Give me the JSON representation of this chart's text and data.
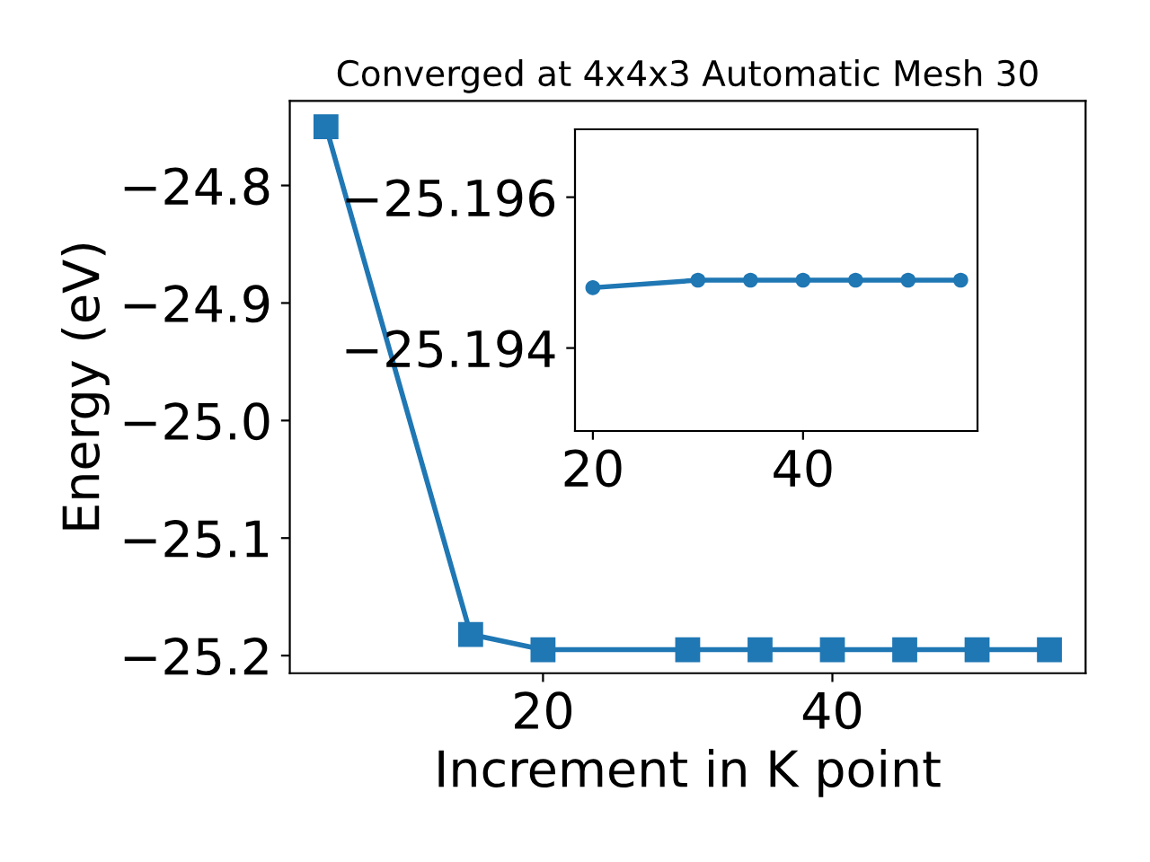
{
  "chart_data": [
    {
      "type": "line",
      "title": "Converged at 4x4x3 Automatic Mesh 30",
      "xlabel": "Increment in K point",
      "ylabel": "Energy (eV)",
      "x": [
        5,
        15,
        20,
        30,
        35,
        40,
        45,
        50,
        55
      ],
      "series": [
        {
          "color": "#1f77b4",
          "values": [
            -24.75,
            -25.182,
            -25.195,
            -25.195,
            -25.195,
            -25.195,
            -25.195,
            -25.195,
            -25.195
          ]
        }
      ],
      "xlim": [
        2.5,
        57.5
      ],
      "xticks": [
        20,
        40
      ],
      "ylim": [
        -25.215,
        -24.728
      ],
      "yticks": [
        {
          "value": -25.2,
          "label": "−25.2"
        },
        {
          "value": -25.1,
          "label": "−25.1"
        },
        {
          "value": -25.0,
          "label": "−25.0"
        },
        {
          "value": -24.9,
          "label": "−24.9"
        },
        {
          "value": -24.8,
          "label": "−24.8"
        }
      ],
      "marker": "square",
      "grid": false
    },
    {
      "type": "line",
      "x": [
        20,
        30,
        35,
        40,
        45,
        50,
        55
      ],
      "series": [
        {
          "color": "#1f77b4",
          "values": [
            -25.1948,
            -25.1949,
            -25.1949,
            -25.1949,
            -25.1949,
            -25.1949,
            -25.1949
          ]
        }
      ],
      "xlim": [
        18.3,
        56.6
      ],
      "xticks": [
        20,
        40
      ],
      "ylim": [
        -25.1929,
        -25.1969
      ],
      "yticks": [
        {
          "value": -25.196,
          "label": "−25.196"
        },
        {
          "value": -25.194,
          "label": "−25.194"
        }
      ],
      "marker": "circle",
      "grid": false
    }
  ]
}
